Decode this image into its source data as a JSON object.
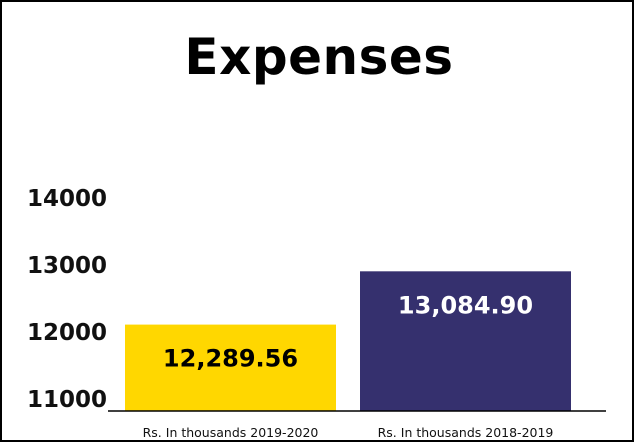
{
  "chart_data": {
    "type": "bar",
    "title": "Expenses",
    "categories": [
      "Rs. In thousands 2019-2020",
      "Rs. In thousands 2018-2019"
    ],
    "values": [
      12289.56,
      13084.9
    ],
    "data_labels": [
      "12,289.56",
      "13,084.90"
    ],
    "y_ticks": [
      11000,
      12000,
      13000,
      14000
    ],
    "y_tick_labels": [
      "11000",
      "12000",
      "13000",
      "14000"
    ],
    "ylim": [
      11000,
      14000
    ],
    "grid": false,
    "legend": "none",
    "colors": {
      "bars": [
        "#FFD700",
        "#35306E"
      ],
      "data_label_text": [
        "#000000",
        "#FFFFFF"
      ],
      "axis": "#000000"
    }
  }
}
